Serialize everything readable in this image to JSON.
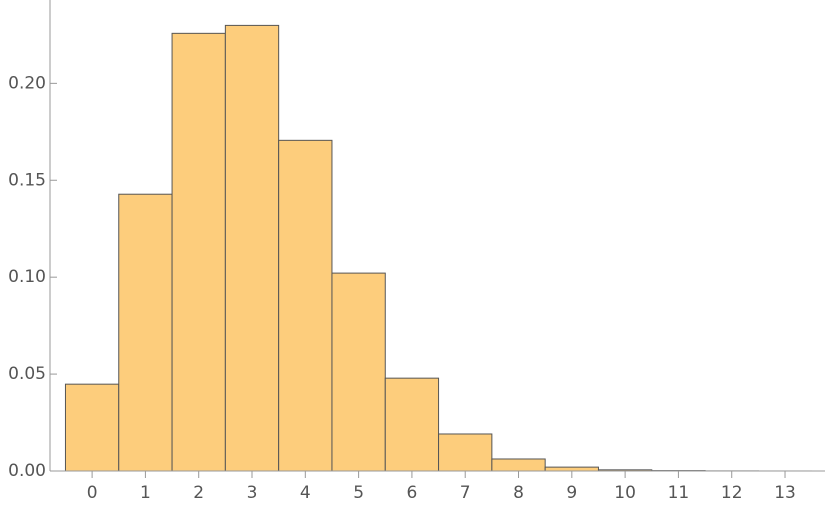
{
  "chart_data": {
    "type": "histogram",
    "bins": [
      -0.5,
      0.5,
      1.5,
      2.5,
      3.5,
      4.5,
      5.5,
      6.5,
      7.5,
      8.5,
      9.5,
      10.5,
      11.5,
      12.5,
      13.5
    ],
    "values": [
      0.0448,
      0.1428,
      0.2258,
      0.2299,
      0.1706,
      0.1021,
      0.0479,
      0.0191,
      0.0062,
      0.002,
      0.0006,
      0.0002,
      5e-05,
      1e-05
    ],
    "color": "#fdcd7c",
    "xlim": [
      -0.79,
      13.75
    ],
    "xticks": [
      0,
      1,
      2,
      3,
      4,
      5,
      6,
      7,
      8,
      9,
      10,
      11,
      12,
      13
    ],
    "ylim": [
      0,
      0.243
    ],
    "yticks": [
      {
        "value": 0,
        "label": "0.00"
      },
      {
        "value": 0.05,
        "label": "0.05"
      },
      {
        "value": 0.1,
        "label": "0.10"
      },
      {
        "value": 0.15,
        "label": "0.15"
      },
      {
        "value": 0.2,
        "label": "0.20"
      }
    ]
  }
}
